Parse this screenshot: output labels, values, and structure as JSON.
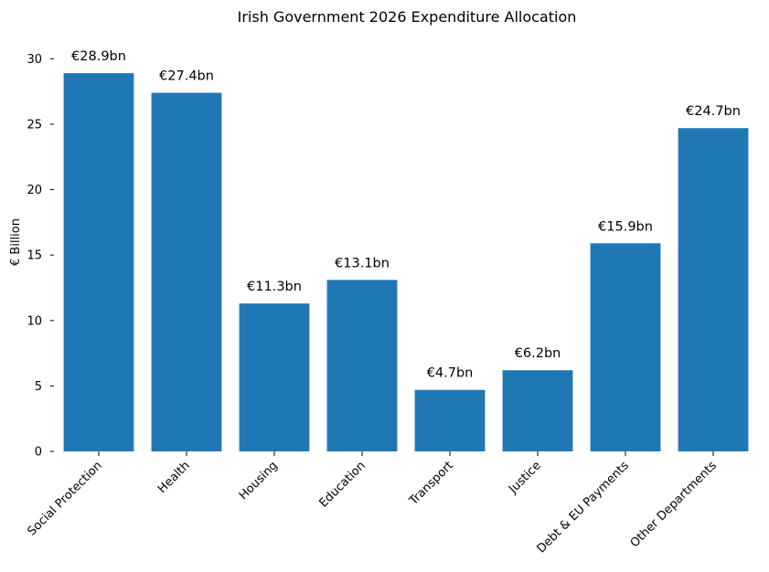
{
  "chart_data": {
    "type": "bar",
    "title": "Irish Government 2026 Expenditure Allocation",
    "xlabel": "",
    "ylabel": "€ Billion",
    "categories": [
      "Social Protection",
      "Health",
      "Housing",
      "Education",
      "Transport",
      "Justice",
      "Debt & EU Payments",
      "Other Departments"
    ],
    "values": [
      28.9,
      27.4,
      11.3,
      13.1,
      4.7,
      6.2,
      15.9,
      24.7
    ],
    "data_labels": [
      "€28.9bn",
      "€27.4bn",
      "€11.3bn",
      "€13.1bn",
      "€4.7bn",
      "€6.2bn",
      "€15.9bn",
      "€24.7bn"
    ],
    "ylim": [
      0,
      31
    ],
    "yticks": [
      0,
      5,
      10,
      15,
      20,
      25,
      30
    ],
    "bar_color": "#1f77b4",
    "grid": false,
    "legend": "none"
  }
}
